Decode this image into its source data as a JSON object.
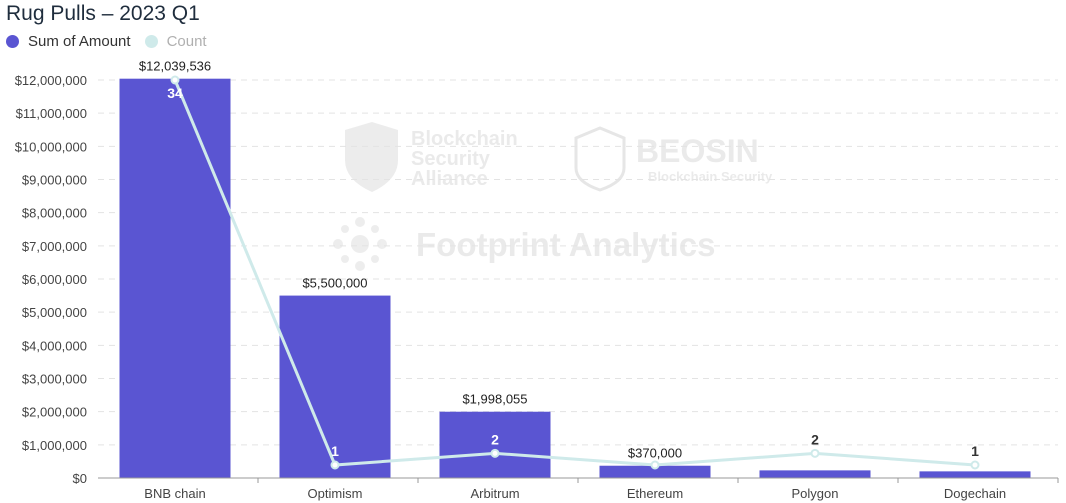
{
  "title": "Rug Pulls – 2023 Q1",
  "legend": [
    {
      "label": "Sum of Amount",
      "color": "#5a55d2"
    },
    {
      "label": "Count",
      "color": "#cfeaea"
    }
  ],
  "watermarks": {
    "bsa_1": "Blockchain",
    "bsa_2": "Security",
    "bsa_3": "Alliance",
    "beosin": "BEOSIN",
    "beosin_sub": "Blockchain Security",
    "footprint": "Footprint Analytics"
  },
  "chart_data": {
    "type": "bar",
    "title": "Rug Pulls – 2023 Q1",
    "categories": [
      "BNB chain",
      "Optimism",
      "Arbitrum",
      "Ethereum",
      "Polygon",
      "Dogechain"
    ],
    "series": [
      {
        "name": "Sum of Amount",
        "type": "bar",
        "axis": "left",
        "values": [
          12039536,
          5500000,
          1998055,
          370000,
          230000,
          200000
        ],
        "labels": [
          "$12,039,536",
          "$5,500,000",
          "$1,998,055",
          "$370,000",
          "",
          ""
        ]
      },
      {
        "name": "Count",
        "type": "line",
        "axis": "right",
        "values": [
          34,
          1,
          2,
          1,
          2,
          1
        ],
        "labels": [
          "34",
          "1",
          "2",
          "",
          "2",
          "1"
        ]
      }
    ],
    "y_ticks": [
      "$0",
      "$1,000,000",
      "$2,000,000",
      "$3,000,000",
      "$4,000,000",
      "$5,000,000",
      "$6,000,000",
      "$7,000,000",
      "$8,000,000",
      "$9,000,000",
      "$10,000,000",
      "$11,000,000",
      "$12,000,000"
    ],
    "ylim": [
      0,
      12000000
    ],
    "y2lim": [
      0,
      34
    ],
    "grid": true,
    "legend_position": "top-left",
    "colors": {
      "bar": "#5a55d2",
      "line": "#cfeaea",
      "grid": "#e3e3e3",
      "axis": "#999999"
    }
  }
}
